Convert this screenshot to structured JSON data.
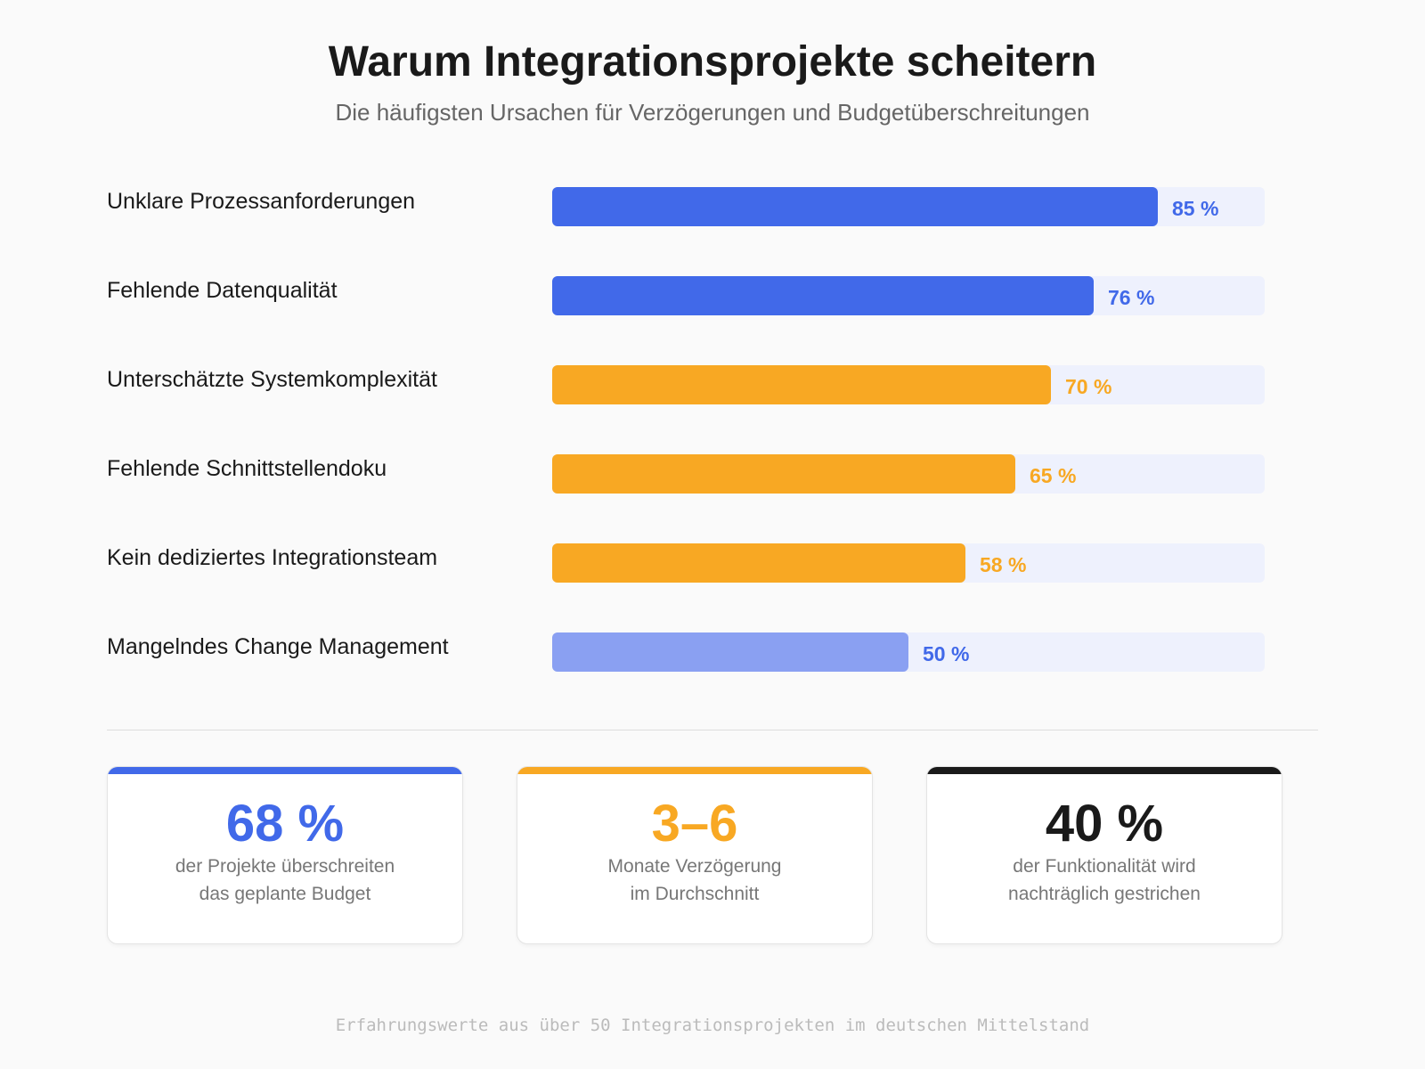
{
  "header": {
    "title": "Warum Integrationsprojekte scheitern",
    "subtitle": "Die häufigsten Ursachen für Verzögerungen und Budgetüberschreitungen"
  },
  "chart_data": {
    "type": "bar",
    "orientation": "horizontal",
    "categories": [
      "Unklare Prozessanforderungen",
      "Fehlende Datenqualität",
      "Unterschätzte Systemkomplexität",
      "Fehlende Schnittstellendoku",
      "Kein dediziertes Integrationsteam",
      "Mangelndes Change Management"
    ],
    "values": [
      85,
      76,
      70,
      65,
      58,
      50
    ],
    "value_labels": [
      "85 %",
      "76 %",
      "70 %",
      "65 %",
      "58 %",
      "50 %"
    ],
    "colors": [
      "#4169e9",
      "#4169e9",
      "#f8a823",
      "#f8a823",
      "#f8a823",
      "#8aa0f2"
    ],
    "label_colors": [
      "#4169e9",
      "#4169e9",
      "#f8a823",
      "#f8a823",
      "#f8a823",
      "#4169e9"
    ],
    "track_color": "#eef1fd",
    "xlim": [
      0,
      100
    ],
    "grid": false
  },
  "stats": [
    {
      "value": "68 %",
      "line1": "der Projekte überschreiten",
      "line2": "das geplante Budget",
      "color": "#4169e9"
    },
    {
      "value": "3–6",
      "line1": "Monate Verzögerung",
      "line2": "im Durchschnitt",
      "color": "#f8a823"
    },
    {
      "value": "40 %",
      "line1": "der Funktionalität wird",
      "line2": "nachträglich gestrichen",
      "color": "#1a1a1a"
    }
  ],
  "footer": "Erfahrungswerte aus über 50 Integrationsprojekten im deutschen Mittelstand"
}
